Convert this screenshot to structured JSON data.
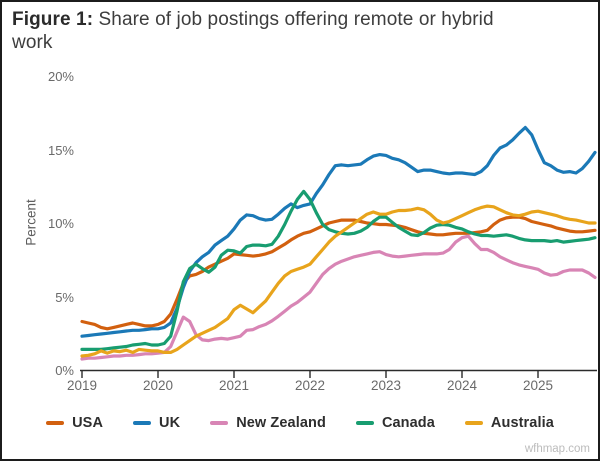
{
  "header": {
    "title_prefix": "Figure 1:",
    "title_text": " Share of job postings offering remote or hybrid work"
  },
  "watermark": "wfhmap.com",
  "chart_data": {
    "type": "line",
    "x_frequency": "monthly",
    "x_start": "2019-01",
    "x_end": "2025-10",
    "x_ticks": [
      "2019",
      "2020",
      "2021",
      "2022",
      "2023",
      "2024",
      "2025"
    ],
    "ylabel": "Percent",
    "ylim": [
      0,
      20
    ],
    "y_ticks": [
      {
        "label": "0%",
        "value": 0
      },
      {
        "label": "5%",
        "value": 5
      },
      {
        "label": "10%",
        "value": 10
      },
      {
        "label": "15%",
        "value": 15
      },
      {
        "label": "20%",
        "value": 20
      }
    ],
    "grid": false,
    "legend_position": "bottom",
    "series": [
      {
        "name": "USA",
        "color": "#D2600F",
        "values": [
          3.3,
          3.2,
          3.1,
          2.9,
          2.8,
          2.9,
          3.0,
          3.1,
          3.2,
          3.1,
          3.0,
          3.0,
          3.1,
          3.3,
          3.8,
          4.8,
          5.9,
          6.4,
          6.5,
          6.7,
          7.0,
          7.2,
          7.4,
          7.6,
          7.9,
          7.85,
          7.8,
          7.75,
          7.8,
          7.9,
          8.05,
          8.3,
          8.55,
          8.85,
          9.1,
          9.3,
          9.4,
          9.6,
          9.8,
          10.0,
          10.1,
          10.2,
          10.2,
          10.2,
          10.1,
          10.0,
          9.95,
          9.9,
          9.9,
          9.85,
          9.8,
          9.7,
          9.55,
          9.4,
          9.3,
          9.25,
          9.2,
          9.2,
          9.25,
          9.3,
          9.3,
          9.3,
          9.35,
          9.4,
          9.5,
          9.9,
          10.2,
          10.35,
          10.4,
          10.4,
          10.3,
          10.1,
          10.0,
          9.9,
          9.8,
          9.65,
          9.55,
          9.45,
          9.4,
          9.4,
          9.45,
          9.5
        ]
      },
      {
        "name": "UK",
        "color": "#1B79B7",
        "values": [
          2.3,
          2.35,
          2.4,
          2.45,
          2.5,
          2.55,
          2.6,
          2.65,
          2.7,
          2.7,
          2.75,
          2.8,
          2.8,
          2.9,
          3.2,
          4.2,
          5.6,
          6.7,
          7.3,
          7.7,
          8.0,
          8.5,
          8.8,
          9.1,
          9.6,
          10.2,
          10.55,
          10.5,
          10.3,
          10.2,
          10.25,
          10.6,
          11.0,
          11.3,
          11.05,
          11.2,
          11.3,
          12.0,
          12.6,
          13.3,
          13.9,
          13.95,
          13.9,
          13.95,
          14.0,
          14.3,
          14.55,
          14.65,
          14.6,
          14.4,
          14.3,
          14.1,
          13.8,
          13.5,
          13.6,
          13.6,
          13.5,
          13.4,
          13.35,
          13.4,
          13.4,
          13.35,
          13.3,
          13.5,
          13.9,
          14.6,
          15.1,
          15.3,
          15.65,
          16.1,
          16.5,
          16.0,
          15.0,
          14.1,
          13.9,
          13.6,
          13.45,
          13.5,
          13.4,
          13.7,
          14.2,
          14.8
        ]
      },
      {
        "name": "New Zealand",
        "color": "#D885B5",
        "values": [
          0.75,
          0.8,
          0.8,
          0.85,
          0.9,
          0.95,
          0.95,
          1.0,
          1.0,
          1.05,
          1.1,
          1.1,
          1.15,
          1.2,
          1.6,
          2.6,
          3.6,
          3.3,
          2.4,
          2.05,
          2.0,
          2.1,
          2.15,
          2.1,
          2.2,
          2.3,
          2.7,
          2.75,
          2.95,
          3.1,
          3.35,
          3.65,
          4.0,
          4.35,
          4.6,
          4.95,
          5.3,
          5.9,
          6.5,
          6.9,
          7.2,
          7.4,
          7.55,
          7.7,
          7.8,
          7.9,
          8.0,
          8.05,
          7.85,
          7.75,
          7.7,
          7.75,
          7.8,
          7.85,
          7.9,
          7.9,
          7.9,
          7.95,
          8.2,
          8.7,
          9.0,
          9.1,
          8.6,
          8.2,
          8.2,
          8.0,
          7.7,
          7.5,
          7.3,
          7.15,
          7.05,
          6.95,
          6.85,
          6.6,
          6.45,
          6.5,
          6.7,
          6.8,
          6.8,
          6.8,
          6.6,
          6.3
        ]
      },
      {
        "name": "Canada",
        "color": "#189D70",
        "values": [
          1.4,
          1.4,
          1.4,
          1.4,
          1.45,
          1.5,
          1.55,
          1.6,
          1.7,
          1.75,
          1.8,
          1.7,
          1.7,
          1.8,
          2.3,
          4.0,
          6.0,
          6.9,
          7.2,
          6.9,
          6.65,
          7.0,
          7.8,
          8.15,
          8.1,
          7.95,
          8.4,
          8.5,
          8.5,
          8.45,
          8.55,
          9.1,
          9.9,
          10.8,
          11.6,
          12.15,
          11.6,
          10.7,
          9.9,
          9.55,
          9.4,
          9.3,
          9.25,
          9.3,
          9.45,
          9.7,
          10.1,
          10.4,
          10.4,
          10.05,
          9.7,
          9.45,
          9.2,
          9.15,
          9.35,
          9.65,
          9.85,
          9.9,
          9.85,
          9.7,
          9.6,
          9.4,
          9.25,
          9.15,
          9.15,
          9.1,
          9.15,
          9.2,
          9.1,
          8.95,
          8.85,
          8.8,
          8.8,
          8.8,
          8.75,
          8.8,
          8.7,
          8.75,
          8.8,
          8.85,
          8.9,
          9.0
        ]
      },
      {
        "name": "Australia",
        "color": "#E8A41C",
        "values": [
          0.95,
          1.0,
          1.1,
          1.3,
          1.15,
          1.3,
          1.25,
          1.35,
          1.2,
          1.4,
          1.35,
          1.3,
          1.3,
          1.2,
          1.2,
          1.4,
          1.7,
          2.0,
          2.3,
          2.5,
          2.7,
          2.9,
          3.2,
          3.5,
          4.1,
          4.4,
          4.15,
          3.9,
          4.3,
          4.7,
          5.3,
          5.9,
          6.4,
          6.7,
          6.85,
          7.0,
          7.2,
          7.7,
          8.2,
          8.7,
          9.1,
          9.4,
          9.7,
          10.0,
          10.3,
          10.6,
          10.75,
          10.6,
          10.6,
          10.75,
          10.85,
          10.85,
          10.9,
          11.0,
          10.9,
          10.6,
          10.2,
          10.0,
          10.1,
          10.3,
          10.5,
          10.7,
          10.9,
          11.05,
          11.15,
          11.1,
          10.9,
          10.7,
          10.55,
          10.5,
          10.6,
          10.75,
          10.8,
          10.7,
          10.6,
          10.5,
          10.35,
          10.25,
          10.2,
          10.1,
          10.0,
          10.0
        ]
      }
    ]
  }
}
